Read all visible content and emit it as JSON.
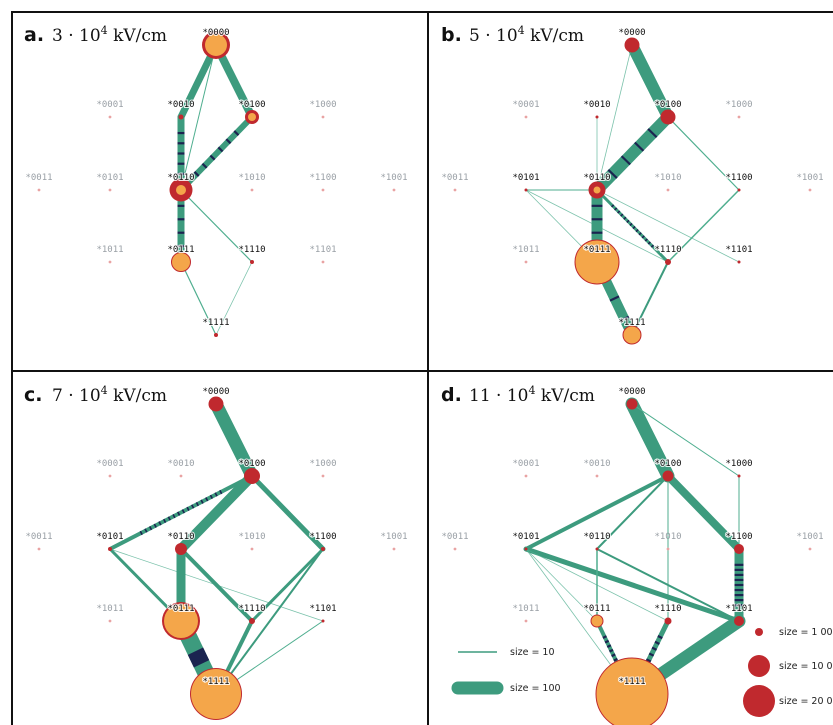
{
  "colors": {
    "edge": "#3d9b7e",
    "edge_thin": "#4fae8f",
    "stripe": "#1b2450",
    "node_red": "#c0292e",
    "node_orange": "#f4a64a",
    "label_active": "#111111",
    "label_inactive": "#9aa0a6",
    "dot_inactive": "#e9a3a3"
  },
  "panels": [
    {
      "letter": "a.",
      "field_text": "3 · 10",
      "field_exp": "4",
      "field_unit": " kV/cm",
      "nodes": [
        {
          "label": "*0000",
          "active": true,
          "red": 14,
          "orange": 11
        },
        {
          "label": "*0001",
          "active": false
        },
        {
          "label": "*0010",
          "active": true,
          "red": 2.5
        },
        {
          "label": "*0100",
          "active": true,
          "red": 7,
          "orange": 4
        },
        {
          "label": "*1000",
          "active": false
        },
        {
          "label": "*0011",
          "active": false
        },
        {
          "label": "*0101",
          "active": false
        },
        {
          "label": "*0110",
          "active": true,
          "red": 11.5,
          "orange": 5
        },
        {
          "label": "*1010",
          "active": false
        },
        {
          "label": "*1100",
          "active": false
        },
        {
          "label": "*1001",
          "active": false
        },
        {
          "label": "*1011",
          "active": false
        },
        {
          "label": "*0111",
          "active": true,
          "orange": 9.5
        },
        {
          "label": "*1110",
          "active": true,
          "red": 2
        },
        {
          "label": "*1101",
          "active": false
        },
        {
          "label": "*1111",
          "active": true,
          "red": 2
        }
      ],
      "edges": [
        {
          "from": "*0000",
          "to": "*0010",
          "w": 7
        },
        {
          "from": "*0000",
          "to": "*0100",
          "w": 8
        },
        {
          "from": "*0000",
          "to": "*0110",
          "w": 1
        },
        {
          "from": "*0010",
          "to": "*0110",
          "w": 7,
          "stripes": 5
        },
        {
          "from": "*0100",
          "to": "*0110",
          "w": 6,
          "stripes": 6
        },
        {
          "from": "*0110",
          "to": "*0111",
          "w": 7,
          "stripes": 4
        },
        {
          "from": "*0110",
          "to": "*1110",
          "w": 1.2
        },
        {
          "from": "*0111",
          "to": "*1111",
          "w": 1.2
        },
        {
          "from": "*1110",
          "to": "*1111",
          "w": 0.8
        }
      ]
    },
    {
      "letter": "b.",
      "field_text": "5 · 10",
      "field_exp": "4",
      "field_unit": " kV/cm",
      "nodes": [
        {
          "label": "*0000",
          "active": true,
          "red": 7.5
        },
        {
          "label": "*0001",
          "active": false
        },
        {
          "label": "*0010",
          "active": true,
          "red": 1.5
        },
        {
          "label": "*0100",
          "active": true,
          "red": 7.5
        },
        {
          "label": "*1000",
          "active": false
        },
        {
          "label": "*0011",
          "active": false
        },
        {
          "label": "*0101",
          "active": true,
          "red": 1.5
        },
        {
          "label": "*0110",
          "active": true,
          "red": 8.5,
          "orange": 3.5
        },
        {
          "label": "*1010",
          "active": false
        },
        {
          "label": "*1100",
          "active": true,
          "red": 1.5
        },
        {
          "label": "*1001",
          "active": false
        },
        {
          "label": "*1011",
          "active": false
        },
        {
          "label": "*0111",
          "active": true,
          "orange": 22
        },
        {
          "label": "*1110",
          "active": true,
          "red": 3
        },
        {
          "label": "*1101",
          "active": true,
          "red": 1.5
        },
        {
          "label": "*1111",
          "active": true,
          "orange": 9
        }
      ],
      "edges": [
        {
          "from": "*0000",
          "to": "*0100",
          "w": 12
        },
        {
          "from": "*0000",
          "to": "*0110",
          "w": 0.8
        },
        {
          "from": "*0010",
          "to": "*0110",
          "w": 0.8
        },
        {
          "from": "*0100",
          "to": "*0110",
          "w": 12,
          "stripes": 4
        },
        {
          "from": "*0100",
          "to": "*1100",
          "w": 1.2
        },
        {
          "from": "*0101",
          "to": "*0110",
          "w": 1.0
        },
        {
          "from": "*0101",
          "to": "*1110",
          "w": 0.8
        },
        {
          "from": "*0101",
          "to": "*0111",
          "w": 0.8
        },
        {
          "from": "*0110",
          "to": "*0111",
          "w": 11,
          "stripes": 4
        },
        {
          "from": "*0110",
          "to": "*1110",
          "w": 3,
          "stripes": 14
        },
        {
          "from": "*1100",
          "to": "*1110",
          "w": 1.5
        },
        {
          "from": "*0110",
          "to": "*1101",
          "w": 0.8
        },
        {
          "from": "*0111",
          "to": "*1111",
          "w": 10,
          "stripes": 3
        },
        {
          "from": "*1110",
          "to": "*1111",
          "w": 2
        }
      ]
    },
    {
      "letter": "c.",
      "field_text": "7 · 10",
      "field_exp": "4",
      "field_unit": " kV/cm",
      "nodes": [
        {
          "label": "*0000",
          "active": true,
          "red": 7.5
        },
        {
          "label": "*0001",
          "active": false
        },
        {
          "label": "*0010",
          "active": false
        },
        {
          "label": "*0100",
          "active": true,
          "red": 8
        },
        {
          "label": "*1000",
          "active": false
        },
        {
          "label": "*0011",
          "active": false
        },
        {
          "label": "*0101",
          "active": true,
          "red": 2
        },
        {
          "label": "*0110",
          "active": true,
          "red": 6
        },
        {
          "label": "*1010",
          "active": false
        },
        {
          "label": "*1100",
          "active": true,
          "red": 2
        },
        {
          "label": "*1001",
          "active": false
        },
        {
          "label": "*1011",
          "active": false
        },
        {
          "label": "*0111",
          "active": true,
          "red": 19,
          "orange": 17
        },
        {
          "label": "*1110",
          "active": true,
          "red": 3
        },
        {
          "label": "*1101",
          "active": true,
          "red": 1.5
        },
        {
          "label": "*1111",
          "active": true,
          "red": 26,
          "orange": 25
        }
      ],
      "edges": [
        {
          "from": "*0000",
          "to": "*0100",
          "w": 13
        },
        {
          "from": "*0100",
          "to": "*0101",
          "w": 4,
          "stripes": 18
        },
        {
          "from": "*0100",
          "to": "*0110",
          "w": 10
        },
        {
          "from": "*0100",
          "to": "*1100",
          "w": 5
        },
        {
          "from": "*0101",
          "to": "*0111",
          "w": 3
        },
        {
          "from": "*0101",
          "to": "*1101",
          "w": 0.8
        },
        {
          "from": "*0110",
          "to": "*0111",
          "w": 9
        },
        {
          "from": "*0110",
          "to": "*1110",
          "w": 4
        },
        {
          "from": "*0111",
          "to": "*1111",
          "w": 17,
          "stripes": 1
        },
        {
          "from": "*1100",
          "to": "*1111",
          "w": 2
        },
        {
          "from": "*1100",
          "to": "*1110",
          "w": 3
        },
        {
          "from": "*1110",
          "to": "*1111",
          "w": 4
        },
        {
          "from": "*1101",
          "to": "*1111",
          "w": 1
        }
      ]
    },
    {
      "letter": "d.",
      "field_text": "11 · 10",
      "field_exp": "4",
      "field_unit": " kV/cm",
      "nodes": [
        {
          "label": "*0000",
          "active": true,
          "red": 5.5
        },
        {
          "label": "*0001",
          "active": false
        },
        {
          "label": "*0010",
          "active": false
        },
        {
          "label": "*0100",
          "active": true,
          "red": 5.5
        },
        {
          "label": "*1000",
          "active": true,
          "red": 1.5
        },
        {
          "label": "*0011",
          "active": false
        },
        {
          "label": "*0101",
          "active": true,
          "red": 1.5
        },
        {
          "label": "*0110",
          "active": true,
          "red": 1.5
        },
        {
          "label": "*1010",
          "active": false
        },
        {
          "label": "*1100",
          "active": true,
          "red": 5
        },
        {
          "label": "*1001",
          "active": false
        },
        {
          "label": "*1011",
          "active": false
        },
        {
          "label": "*0111",
          "active": true,
          "orange": 6
        },
        {
          "label": "*1110",
          "active": true,
          "red": 3.5
        },
        {
          "label": "*1101",
          "active": true,
          "red": 5
        },
        {
          "label": "*1111",
          "active": true,
          "orange": 36
        }
      ],
      "edges": [
        {
          "from": "*0000",
          "to": "*0100",
          "w": 13
        },
        {
          "from": "*0000",
          "to": "*1000",
          "w": 1
        },
        {
          "from": "*0100",
          "to": "*0101",
          "w": 4
        },
        {
          "from": "*0100",
          "to": "*0110",
          "w": 2
        },
        {
          "from": "*0100",
          "to": "*1100",
          "w": 8
        },
        {
          "from": "*0100",
          "to": "*1110",
          "w": 1
        },
        {
          "from": "*1000",
          "to": "*1100",
          "w": 1
        },
        {
          "from": "*0101",
          "to": "*1101",
          "w": 5
        },
        {
          "from": "*0101",
          "to": "*0111",
          "w": 0.8
        },
        {
          "from": "*0101",
          "to": "*1110",
          "w": 0.8
        },
        {
          "from": "*0101",
          "to": "*1111",
          "w": 0.8
        },
        {
          "from": "*0110",
          "to": "*0111",
          "w": 1.5
        },
        {
          "from": "*0110",
          "to": "*1101",
          "w": 2
        },
        {
          "from": "*1100",
          "to": "*1101",
          "w": 9,
          "stripes": 9
        },
        {
          "from": "*0111",
          "to": "*1111",
          "w": 4,
          "stripes": 10
        },
        {
          "from": "*1110",
          "to": "*1111",
          "w": 5,
          "stripes": 8
        },
        {
          "from": "*1101",
          "to": "*1111",
          "w": 13
        }
      ]
    }
  ],
  "legend": {
    "edges": [
      {
        "text": "size = 10",
        "w": 1.5
      },
      {
        "text": "size = 100",
        "w": 13
      }
    ],
    "nodes": [
      {
        "text": "size = 1 000",
        "r": 4
      },
      {
        "text": "size = 10 000",
        "r": 11
      },
      {
        "text": "size = 20 000",
        "r": 16
      }
    ]
  }
}
